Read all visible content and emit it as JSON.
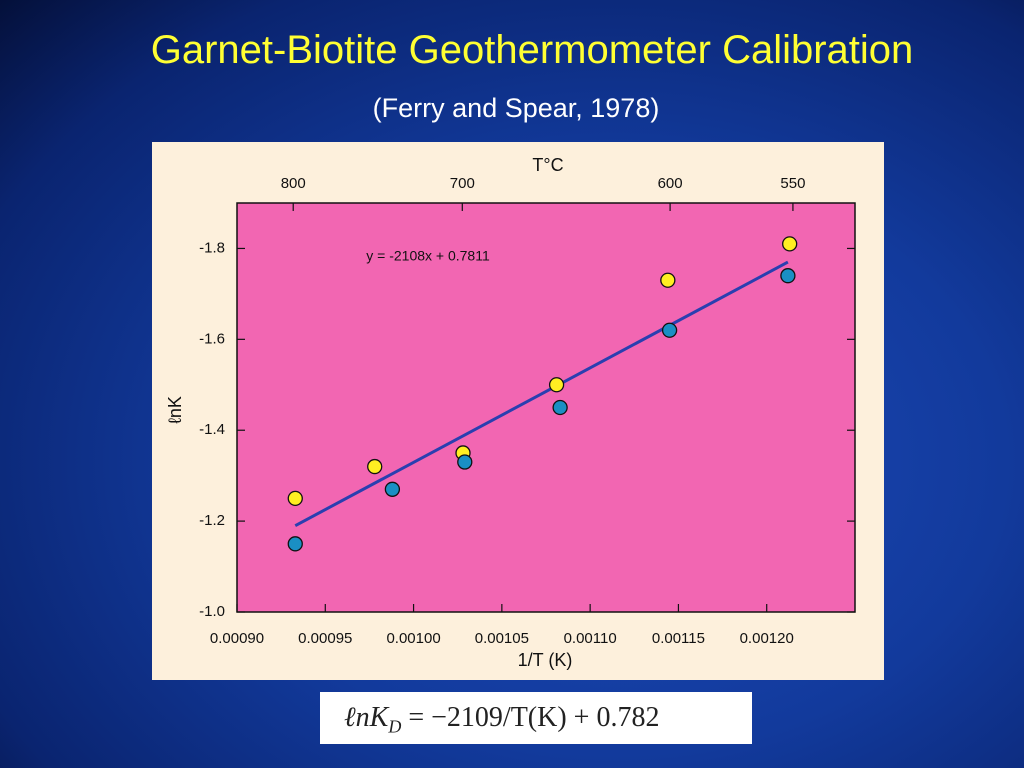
{
  "header": {
    "title": "Garnet-Biotite Geothermometer Calibration",
    "subtitle": "(Ferry and Spear, 1978)"
  },
  "chart_data": {
    "type": "scatter",
    "xlabel": "1/T (K)",
    "ylabel": "ℓnK",
    "x2label": "T°C",
    "annotation": "y = -2108x + 0.7811",
    "xlim": [
      0.0009,
      0.00125
    ],
    "xticks": [
      {
        "value": 0.0009,
        "label": "0.00090"
      },
      0.00095,
      {
        "value": 0.001,
        "label": "0.00100"
      },
      0.00105,
      {
        "value": 0.0011,
        "label": "0.00110"
      },
      0.00115,
      {
        "value": 0.0012,
        "label": "0.00120"
      }
    ],
    "ylim": [
      -1.0,
      -1.9
    ],
    "yticks": [
      {
        "value": -1,
        "label": "-1.0"
      },
      -1.2,
      -1.4,
      -1.6,
      -1.8
    ],
    "x2ticks": [
      800,
      700,
      600,
      550
    ],
    "series": [
      {
        "color": "#ffee22",
        "x": [
          0.000933,
          0.000978,
          0.001028,
          0.001081,
          0.001144,
          0.001213
        ],
        "values": [
          -1.25,
          -1.32,
          -1.35,
          -1.5,
          -1.73,
          -1.81
        ]
      },
      {
        "color": "#1a8fc4",
        "x": [
          0.000933,
          0.000988,
          0.001029,
          0.001083,
          0.001145,
          0.001212
        ],
        "values": [
          -1.15,
          -1.27,
          -1.33,
          -1.45,
          -1.62,
          -1.74
        ]
      }
    ],
    "fit": {
      "color": "#2a3fb0",
      "x": [
        0.000933,
        0.001212
      ],
      "values": [
        -1.19,
        -1.77
      ]
    },
    "plot_color": "#f266b2",
    "panel_color": "#fdf0dc"
  },
  "formula": {
    "lhs": "ℓnK",
    "sub": "D",
    "rhs": " = −2109/T(K) + 0.782"
  }
}
